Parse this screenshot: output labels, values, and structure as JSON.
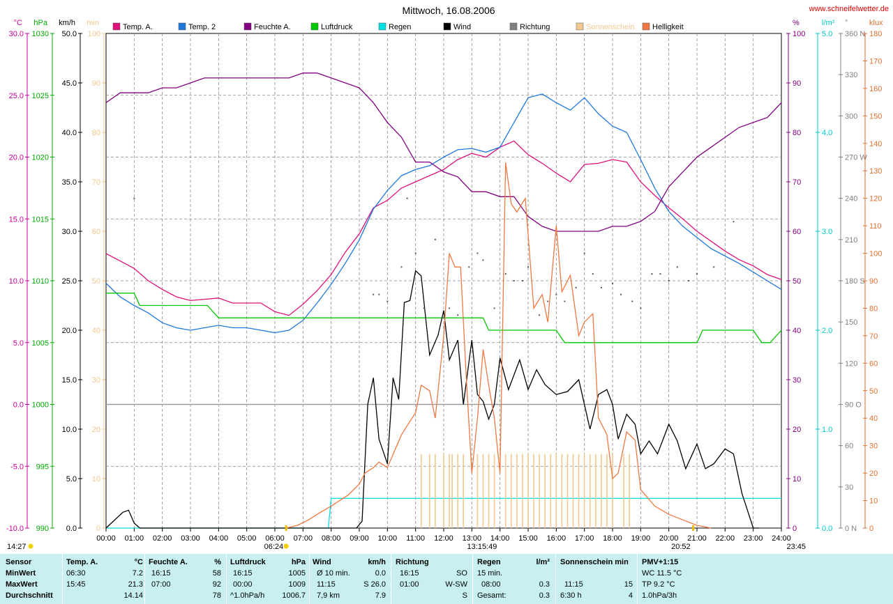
{
  "header": {
    "title": "Mittwoch, 16.08.2006",
    "website": "www.schneifelwetter.de"
  },
  "chart_data": {
    "type": "line",
    "title": "Mittwoch, 16.08.2006",
    "x_ticks": [
      "00:00",
      "01:00",
      "02:00",
      "03:00",
      "04:00",
      "05:00",
      "06:00",
      "07:00",
      "08:00",
      "09:00",
      "10:00",
      "11:00",
      "12:00",
      "13:00",
      "14:00",
      "15:00",
      "16:00",
      "17:00",
      "18:00",
      "19:00",
      "20:00",
      "21:00",
      "22:00",
      "23:00",
      "24:00"
    ],
    "axes": [
      {
        "unit": "°C",
        "color": "#cc0099",
        "ticks": [
          "30.0",
          "25.0",
          "20.0",
          "15.0",
          "10.0",
          "5.0",
          "0.0",
          "-5.0",
          "-10.0"
        ],
        "ylim": [
          -10,
          30
        ]
      },
      {
        "unit": "hPa",
        "color": "#00aa00",
        "ticks": [
          "1030",
          "1025",
          "1020",
          "1015",
          "1010",
          "1005",
          "1000",
          "995",
          "990"
        ],
        "ylim": [
          990,
          1030
        ]
      },
      {
        "unit": "km/h",
        "color": "#000000",
        "ticks": [
          "50.0",
          "45.0",
          "40.0",
          "35.0",
          "30.0",
          "25.0",
          "20.0",
          "15.0",
          "10.0",
          "5.0",
          "0.0"
        ],
        "ylim": [
          0,
          50
        ]
      },
      {
        "unit": "min",
        "color": "#f0c890",
        "ticks": [
          "100",
          "90",
          "80",
          "70",
          "60",
          "50",
          "40",
          "30",
          "20",
          "10",
          "0"
        ],
        "ylim": [
          0,
          100
        ]
      },
      {
        "unit": "%",
        "color": "#800080",
        "ticks": [
          "100",
          "90",
          "80",
          "70",
          "60",
          "50",
          "40",
          "30",
          "20",
          "10",
          "0"
        ],
        "ylim": [
          0,
          100
        ]
      },
      {
        "unit": "l/m²",
        "color": "#00c8c8",
        "ticks": [
          "5.0",
          "4.0",
          "3.0",
          "2.0",
          "1.0",
          "0.0"
        ],
        "ylim": [
          0,
          5
        ]
      },
      {
        "unit": "°",
        "color": "#808080",
        "ticks": [
          "360 N",
          "330",
          "300",
          "270 W",
          "240",
          "210",
          "180 S",
          "150",
          "120",
          "90 O",
          "60",
          "30",
          "0 N"
        ],
        "ylim": [
          0,
          360
        ]
      },
      {
        "unit": "klux",
        "color": "#e07030",
        "ticks": [
          "180",
          "170",
          "160",
          "150",
          "140",
          "130",
          "120",
          "110",
          "100",
          "90",
          "80",
          "70",
          "60",
          "50",
          "40",
          "30",
          "20",
          "10",
          "0"
        ],
        "ylim": [
          0,
          180
        ]
      }
    ],
    "legend": [
      {
        "name": "Temp. A.",
        "color": "#e0107a"
      },
      {
        "name": "Temp. 2",
        "color": "#1e78dc"
      },
      {
        "name": "Feuchte A.",
        "color": "#800080"
      },
      {
        "name": "Luftdruck",
        "color": "#00c800"
      },
      {
        "name": "Regen",
        "color": "#00e0e0"
      },
      {
        "name": "Wind",
        "color": "#000000"
      },
      {
        "name": "Richtung",
        "color": "#808080"
      },
      {
        "name": "Sonnenschein",
        "color": "#f0c890"
      },
      {
        "name": "Helligkeit",
        "color": "#f07840"
      }
    ],
    "series": [
      {
        "name": "Temp. A.",
        "color": "#e0107a",
        "axis": "°C",
        "x": [
          0,
          0.5,
          1,
          1.5,
          2,
          2.5,
          3,
          3.5,
          4,
          4.5,
          5,
          5.5,
          6,
          6.5,
          7,
          7.5,
          8,
          8.5,
          9,
          9.5,
          10,
          10.5,
          11,
          11.5,
          12,
          12.5,
          13,
          13.5,
          14,
          14.5,
          15,
          15.5,
          16,
          16.5,
          17,
          17.5,
          18,
          18.5,
          19,
          19.5,
          20,
          20.5,
          21,
          21.5,
          22,
          22.5,
          23,
          23.5,
          24
        ],
        "y": [
          12.2,
          11.6,
          11.0,
          10.0,
          9.3,
          8.7,
          8.4,
          8.5,
          8.6,
          8.2,
          8.2,
          8.2,
          7.5,
          7.2,
          8.1,
          9.2,
          10.5,
          12.3,
          13.8,
          15.9,
          16.5,
          17.5,
          18.0,
          18.5,
          19.0,
          19.8,
          20.3,
          20.0,
          20.8,
          21.3,
          20.2,
          19.5,
          18.7,
          18.0,
          19.4,
          19.5,
          19.8,
          19.6,
          18.0,
          16.9,
          15.9,
          15.0,
          14.0,
          13.2,
          12.4,
          11.7,
          11.2,
          10.5,
          10.1
        ]
      },
      {
        "name": "Temp. 2",
        "color": "#1e78dc",
        "axis": "°C",
        "x": [
          0,
          0.5,
          1,
          1.5,
          2,
          2.5,
          3,
          3.5,
          4,
          4.5,
          5,
          5.5,
          6,
          6.5,
          7,
          7.5,
          8,
          8.5,
          9,
          9.5,
          10,
          10.5,
          11,
          11.5,
          12,
          12.5,
          13,
          13.5,
          14,
          14.5,
          15,
          15.5,
          16,
          16.5,
          17,
          17.5,
          18,
          18.5,
          19,
          19.5,
          20,
          20.5,
          21,
          21.5,
          22,
          22.5,
          23,
          23.5,
          24
        ],
        "y": [
          9.8,
          8.7,
          8.0,
          7.4,
          6.6,
          6.2,
          6.0,
          6.2,
          6.4,
          6.2,
          6.2,
          6.0,
          5.8,
          6.0,
          6.8,
          8.2,
          9.7,
          11.4,
          13.3,
          15.8,
          17.3,
          18.5,
          19.0,
          19.3,
          20.0,
          20.6,
          20.7,
          20.4,
          20.8,
          22.8,
          24.8,
          25.1,
          24.4,
          23.8,
          24.8,
          23.5,
          22.5,
          22.0,
          19.8,
          17.5,
          15.6,
          14.4,
          13.5,
          12.6,
          12.0,
          11.4,
          10.7,
          10.0,
          9.3
        ]
      },
      {
        "name": "Feuchte A.",
        "color": "#800080",
        "axis": "%",
        "x": [
          0,
          0.5,
          1,
          1.5,
          2,
          2.5,
          3,
          3.5,
          4,
          4.5,
          5,
          5.5,
          6,
          6.5,
          7,
          7.5,
          8,
          8.5,
          9,
          9.5,
          10,
          10.5,
          11,
          11.5,
          12,
          12.5,
          13,
          13.5,
          14,
          14.5,
          15,
          15.5,
          16,
          16.5,
          17,
          17.5,
          18,
          18.5,
          19,
          19.5,
          20,
          20.5,
          21,
          21.5,
          22,
          22.5,
          23,
          23.5,
          24
        ],
        "y": [
          86,
          88,
          88,
          88,
          89,
          89,
          90,
          91,
          91,
          91,
          91,
          91,
          91,
          91,
          92,
          92,
          91,
          90,
          89,
          86,
          82,
          79,
          74,
          74,
          72,
          71,
          68,
          68,
          67,
          67,
          63,
          61,
          60,
          60,
          60,
          60,
          61,
          61,
          62,
          64,
          69,
          72,
          75,
          77,
          79,
          81,
          82,
          83,
          86
        ]
      },
      {
        "name": "Luftdruck",
        "color": "#00c800",
        "axis": "hPa",
        "x": [
          0,
          1,
          1.2,
          3.6,
          4,
          4.5,
          6,
          8,
          10,
          12,
          13.4,
          13.6,
          14,
          15.5,
          16,
          16.3,
          16.8,
          17,
          20,
          21,
          21.2,
          21.5,
          22,
          23,
          23.3,
          23.6,
          24
        ],
        "y": [
          1009,
          1009,
          1008,
          1008,
          1007,
          1007,
          1007,
          1007,
          1007,
          1007,
          1007,
          1006,
          1006,
          1006,
          1006,
          1005,
          1005,
          1005,
          1005,
          1005,
          1006,
          1006,
          1006,
          1006,
          1005,
          1005,
          1006
        ]
      },
      {
        "name": "Regen",
        "color": "#00e0e0",
        "axis": "l/m²",
        "x": [
          0,
          7.9,
          8.0,
          9,
          12,
          16,
          20,
          24
        ],
        "y": [
          0,
          0,
          0.3,
          0.3,
          0.3,
          0.3,
          0.3,
          0.3
        ]
      },
      {
        "name": "Wind",
        "color": "#000000",
        "axis": "km/h",
        "x": [
          0,
          0.6,
          0.8,
          1.0,
          1.2,
          8.9,
          9.1,
          9.3,
          9.5,
          9.7,
          10.0,
          10.2,
          10.4,
          10.6,
          10.8,
          11.0,
          11.2,
          11.5,
          11.8,
          12.0,
          12.2,
          12.5,
          12.7,
          13.0,
          13.2,
          13.4,
          13.6,
          13.8,
          14.0,
          14.3,
          14.7,
          15.0,
          15.3,
          15.6,
          16.0,
          16.4,
          16.8,
          17.2,
          17.5,
          17.8,
          18.0,
          18.2,
          18.5,
          18.8,
          19.0,
          19.3,
          19.6,
          20.0,
          20.3,
          20.6,
          21.0,
          21.3,
          21.6,
          22.0,
          22.3,
          22.6,
          23.0,
          23.2
        ],
        "y": [
          0,
          1.6,
          1.8,
          0.5,
          0,
          0,
          0.7,
          12.5,
          15.2,
          9.0,
          6.5,
          15.2,
          13.0,
          22.8,
          23.0,
          26.0,
          25.5,
          17.5,
          19.5,
          22.0,
          17.0,
          19.0,
          12.5,
          19.0,
          13.5,
          12.8,
          11.0,
          12.5,
          17.2,
          14.0,
          17.0,
          14.0,
          16.0,
          14.5,
          13.5,
          13.8,
          15.0,
          10.0,
          13.5,
          14.0,
          12.5,
          9.0,
          11.5,
          10.5,
          7.5,
          8.8,
          7.5,
          10.5,
          8.8,
          6.0,
          8.5,
          6.0,
          6.5,
          8.0,
          7.5,
          3.5,
          0,
          0
        ]
      },
      {
        "name": "Richtung",
        "color": "#808080",
        "axis": "°",
        "x": [
          1.0,
          10.7,
          9.5,
          9.7,
          10.0,
          10.5,
          11.0,
          11.3,
          11.7,
          12.2,
          12.5,
          12.9,
          13.2,
          13.4,
          13.8,
          14.2,
          14.5,
          14.8,
          15.0,
          15.4,
          15.7,
          16.0,
          16.3,
          16.7,
          17.0,
          17.3,
          17.6,
          18.0,
          18.3,
          18.7,
          19.0,
          19.4,
          19.7,
          20.0,
          20.3,
          20.7,
          21.0,
          21.6,
          22.3
        ],
        "y": [
          240,
          240,
          170,
          170,
          165,
          190,
          200,
          160,
          210,
          160,
          155,
          190,
          200,
          195,
          160,
          185,
          180,
          180,
          190,
          155,
          165,
          170,
          165,
          175,
          200,
          185,
          175,
          178,
          170,
          165,
          160,
          185,
          185,
          180,
          190,
          180,
          185,
          190,
          223
        ]
      },
      {
        "name": "Sonnenschein",
        "color": "#f0c890",
        "axis": "min",
        "x": [
          11.2,
          11.5,
          11.7,
          12.0,
          12.2,
          12.3,
          12.5,
          12.7,
          13.2,
          13.4,
          13.6,
          13.8,
          14.2,
          14.4,
          14.6,
          14.8,
          15.0,
          15.2,
          15.4,
          15.6,
          15.8,
          16.0,
          16.2,
          16.4,
          16.6,
          16.8,
          17.0,
          17.2,
          17.4,
          17.6,
          17.8,
          18.0,
          18.4,
          18.6
        ],
        "y": [
          15,
          15,
          15,
          15,
          15,
          15,
          15,
          15,
          15,
          15,
          15,
          15,
          15,
          15,
          15,
          15,
          15,
          15,
          15,
          15,
          15,
          15,
          15,
          15,
          15,
          15,
          15,
          15,
          15,
          15,
          15,
          15,
          15,
          15
        ]
      },
      {
        "name": "Helligkeit",
        "color": "#f07840",
        "axis": "klux",
        "x": [
          6.4,
          6.8,
          7.2,
          7.5,
          8.0,
          8.3,
          8.6,
          9.0,
          9.2,
          9.5,
          9.7,
          10.0,
          10.5,
          11.0,
          11.2,
          11.5,
          11.7,
          12.0,
          12.2,
          12.4,
          12.6,
          12.8,
          13.0,
          13.2,
          13.4,
          13.6,
          13.8,
          14.0,
          14.2,
          14.4,
          14.6,
          14.9,
          15.2,
          15.5,
          15.7,
          16.0,
          16.2,
          16.5,
          16.8,
          17.0,
          17.3,
          17.5,
          17.8,
          18.0,
          18.2,
          18.5,
          18.8,
          19.0,
          19.5,
          20.0,
          20.5,
          21.0,
          21.5
        ],
        "y": [
          0,
          1,
          3,
          5,
          8,
          10,
          12,
          16,
          20,
          22,
          24,
          22,
          34,
          42,
          52,
          50,
          40,
          70,
          100,
          95,
          95,
          55,
          20,
          40,
          65,
          52,
          40,
          20,
          133,
          118,
          115,
          120,
          80,
          85,
          75,
          110,
          86,
          92,
          70,
          75,
          78,
          40,
          34,
          18,
          20,
          35,
          32,
          14,
          8,
          5,
          3,
          1,
          0
        ]
      }
    ],
    "sun_markers": {
      "sunrise": "06:24",
      "sunset": "20:52",
      "peak": "13:15:49",
      "label_left": "14:27",
      "label_right": "23:45"
    }
  },
  "summary": {
    "sensor": {
      "title": "Sensor",
      "rows": [
        "MinWert",
        "MaxWert",
        "Durchschnitt"
      ]
    },
    "temp": {
      "title": "Temp. A.",
      "unit": "°C",
      "rows": [
        [
          "06:30",
          "7.2"
        ],
        [
          "15:45",
          "21.3"
        ],
        [
          "",
          "14.14"
        ]
      ]
    },
    "humidity": {
      "title": "Feuchte A.",
      "unit": "%",
      "rows": [
        [
          "16:15",
          "58"
        ],
        [
          "07:00",
          "92"
        ],
        [
          "",
          "78"
        ]
      ]
    },
    "pressure": {
      "title": "Luftdruck",
      "unit": "hPa",
      "rows": [
        [
          "16:15",
          "1005"
        ],
        [
          "00:00",
          "1009"
        ],
        [
          "^1.0hPa/h",
          "1006.7"
        ]
      ]
    },
    "wind": {
      "title": "Wind",
      "unit": "km/h",
      "rows": [
        [
          "Ø 10 min.",
          "0.0"
        ],
        [
          "11:15",
          "S 26.0"
        ],
        [
          "7,9 km",
          "7.9"
        ]
      ]
    },
    "direction": {
      "title": "Richtung",
      "rows": [
        [
          "16:15",
          "SO"
        ],
        [
          "01:00",
          "W-SW"
        ],
        [
          "",
          "S"
        ]
      ]
    },
    "rain": {
      "title": "Regen",
      "unit": "l/m²",
      "rows": [
        [
          "15 min.",
          ""
        ],
        [
          "08:00",
          "0.3"
        ],
        [
          "Gesamt:",
          "0.3"
        ]
      ]
    },
    "sunshine": {
      "title": "Sonnenschein min",
      "rows": [
        [
          "",
          ""
        ],
        [
          "11:15",
          "15"
        ],
        [
          "6:30 h",
          "4"
        ]
      ]
    },
    "pmv": {
      "title": "PMV+1:15",
      "rows": [
        "WC 11.5 °C",
        "TP 9.2 °C",
        "1.0hPa/3h"
      ]
    }
  }
}
